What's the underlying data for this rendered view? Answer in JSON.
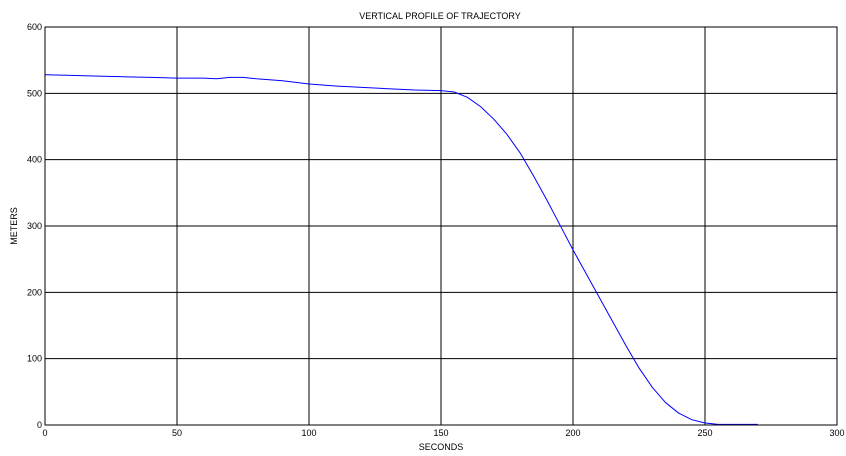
{
  "chart_data": {
    "type": "line",
    "title": "VERTICAL PROFILE OF TRAJECTORY",
    "xlabel": "SECONDS",
    "ylabel": "METERS",
    "xlim": [
      0,
      300
    ],
    "ylim": [
      0,
      600
    ],
    "xticks": [
      0,
      50,
      100,
      150,
      200,
      250,
      300
    ],
    "yticks": [
      0,
      100,
      200,
      300,
      400,
      500,
      600
    ],
    "grid": true,
    "line_color": "#0000ff",
    "series": [
      {
        "x": [
          0,
          10,
          20,
          30,
          40,
          50,
          60,
          65,
          70,
          75,
          80,
          90,
          100,
          110,
          120,
          130,
          140,
          150,
          155,
          160,
          165,
          170,
          175,
          180,
          185,
          190,
          195,
          200,
          205,
          210,
          215,
          220,
          225,
          230,
          235,
          240,
          245,
          250,
          255,
          260,
          265,
          270
        ],
        "y": [
          528,
          527,
          526,
          525,
          524,
          523,
          523,
          522,
          524,
          524,
          522,
          519,
          514,
          511,
          509,
          507,
          505,
          504,
          502,
          494,
          480,
          461,
          438,
          410,
          376,
          340,
          302,
          264,
          228,
          192,
          156,
          120,
          86,
          57,
          34,
          18,
          8,
          3,
          1,
          1,
          1,
          1
        ]
      }
    ]
  }
}
